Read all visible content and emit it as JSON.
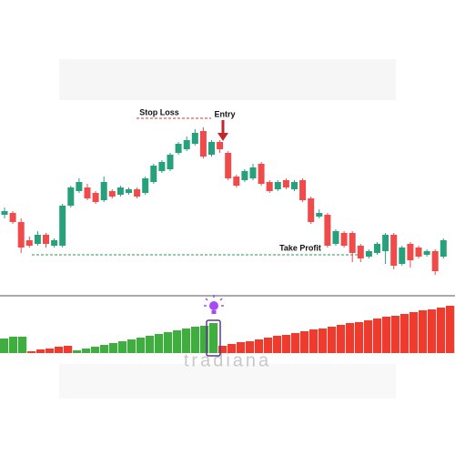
{
  "chart_data": [
    {
      "type": "candlestick",
      "ylim": [
        0,
        100
      ],
      "up_color": "#26a17b",
      "down_color": "#ef4b4b",
      "open": [
        42,
        43,
        38,
        28,
        26,
        31,
        25,
        25,
        47,
        55,
        57,
        54,
        50,
        55,
        53,
        54,
        56,
        54,
        60,
        66,
        67,
        76,
        78,
        81,
        88,
        75,
        82,
        76,
        63,
        61,
        62,
        70,
        60,
        56,
        61,
        56,
        61,
        51,
        41,
        42,
        26,
        32,
        32,
        25,
        19,
        21,
        22,
        31,
        15,
        26,
        24,
        20,
        22,
        19
      ],
      "high": [
        46,
        44,
        40,
        30,
        33,
        32,
        29,
        48,
        58,
        62,
        59,
        55,
        63,
        56,
        58,
        57,
        57,
        63,
        70,
        72,
        76,
        82,
        85,
        89,
        90,
        83,
        83,
        77,
        64,
        67,
        70,
        71,
        61,
        61,
        62,
        61,
        62,
        52,
        45,
        43,
        34,
        33,
        33,
        26,
        23,
        27,
        32,
        32,
        25,
        27,
        25,
        23,
        23,
        29
      ],
      "low": [
        40,
        37,
        21,
        24,
        25,
        24,
        24,
        24,
        46,
        54,
        50,
        48,
        49,
        51,
        52,
        53,
        51,
        53,
        59,
        65,
        66,
        75,
        77,
        80,
        73,
        74,
        76,
        61,
        57,
        60,
        61,
        58,
        54,
        55,
        56,
        55,
        49,
        37,
        40,
        24,
        25,
        24,
        16,
        16,
        18,
        20,
        15,
        12,
        14,
        13,
        18,
        19,
        9,
        18
      ],
      "close": [
        44,
        38,
        24,
        25,
        31,
        26,
        28,
        47,
        57,
        60,
        51,
        49,
        60,
        52,
        57,
        56,
        52,
        62,
        69,
        71,
        75,
        81,
        83,
        87,
        74,
        82,
        78,
        62,
        58,
        66,
        68,
        59,
        55,
        60,
        57,
        60,
        50,
        38,
        43,
        25,
        33,
        25,
        21,
        18,
        22,
        26,
        31,
        14,
        24,
        17,
        19,
        22,
        11,
        28
      ],
      "stop_loss": {
        "label": "Stop Loss",
        "value": 95
      },
      "entry": {
        "label": "Entry",
        "value": 88
      },
      "take_profit": {
        "label": "Take Profit",
        "value": 20
      }
    },
    {
      "type": "bar",
      "ylim": [
        0,
        60
      ],
      "values": [
        16,
        18,
        18,
        2,
        4,
        5,
        7,
        8,
        3,
        5,
        7,
        9,
        11,
        13,
        15,
        17,
        19,
        21,
        23,
        25,
        27,
        29,
        30,
        33,
        8,
        10,
        12,
        13,
        15,
        17,
        19,
        20,
        22,
        24,
        26,
        27,
        29,
        31,
        33,
        34,
        36,
        38,
        40,
        41,
        43,
        45,
        47,
        48,
        50,
        52
      ],
      "colors": [
        "#3fae3f",
        "#3fae3f",
        "#3fae3f",
        "#ef3b2d",
        "#ef3b2d",
        "#ef3b2d",
        "#ef3b2d",
        "#ef3b2d",
        "#3fae3f",
        "#3fae3f",
        "#3fae3f",
        "#3fae3f",
        "#3fae3f",
        "#3fae3f",
        "#3fae3f",
        "#3fae3f",
        "#3fae3f",
        "#3fae3f",
        "#3fae3f",
        "#3fae3f",
        "#3fae3f",
        "#3fae3f",
        "#3fae3f",
        "#3fae3f",
        "#ef3b2d",
        "#ef3b2d",
        "#ef3b2d",
        "#ef3b2d",
        "#ef3b2d",
        "#ef3b2d",
        "#ef3b2d",
        "#ef3b2d",
        "#ef3b2d",
        "#ef3b2d",
        "#ef3b2d",
        "#ef3b2d",
        "#ef3b2d",
        "#ef3b2d",
        "#ef3b2d",
        "#ef3b2d",
        "#ef3b2d",
        "#ef3b2d",
        "#ef3b2d",
        "#ef3b2d",
        "#ef3b2d",
        "#ef3b2d",
        "#ef3b2d",
        "#ef3b2d",
        "#ef3b2d",
        "#ef3b2d"
      ],
      "highlight_bar": 23,
      "watermark": "tradiana"
    }
  ]
}
